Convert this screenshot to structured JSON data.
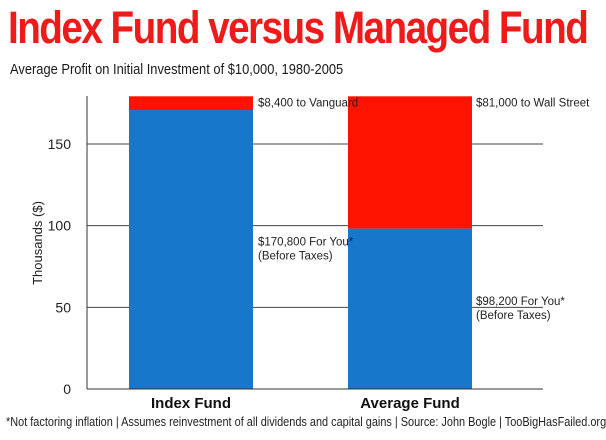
{
  "chart_data": {
    "type": "bar",
    "stacked": true,
    "title": "Index Fund versus Managed Fund",
    "subtitle": "Average Profit on Initial Investment of $10,000, 1980-2005",
    "ylabel": "Thousands ($)",
    "xlabel": "",
    "ylim": [
      0,
      180
    ],
    "yticks": [
      "0",
      "50",
      "100",
      "150"
    ],
    "grid": true,
    "categories": [
      "Index Fund",
      "Average Fund"
    ],
    "series": [
      {
        "values": [
          170.8,
          98.2
        ],
        "color": "#1677cb",
        "labels": [
          [
            "$170,800 For You*",
            "(Before Taxes)"
          ],
          [
            "$98,200 For You*",
            "(Before Taxes)"
          ]
        ]
      },
      {
        "values": [
          8.4,
          81.0
        ],
        "color": "#ff1200",
        "labels": [
          [
            "$8,400 to Vanguard"
          ],
          [
            "$81,000 to Wall Street"
          ]
        ]
      }
    ],
    "footnote": "*Not factoring inflation | Assumes reinvestment of all dividends and capital gains | Source: John Bogle | TooBigHasFailed.org"
  }
}
